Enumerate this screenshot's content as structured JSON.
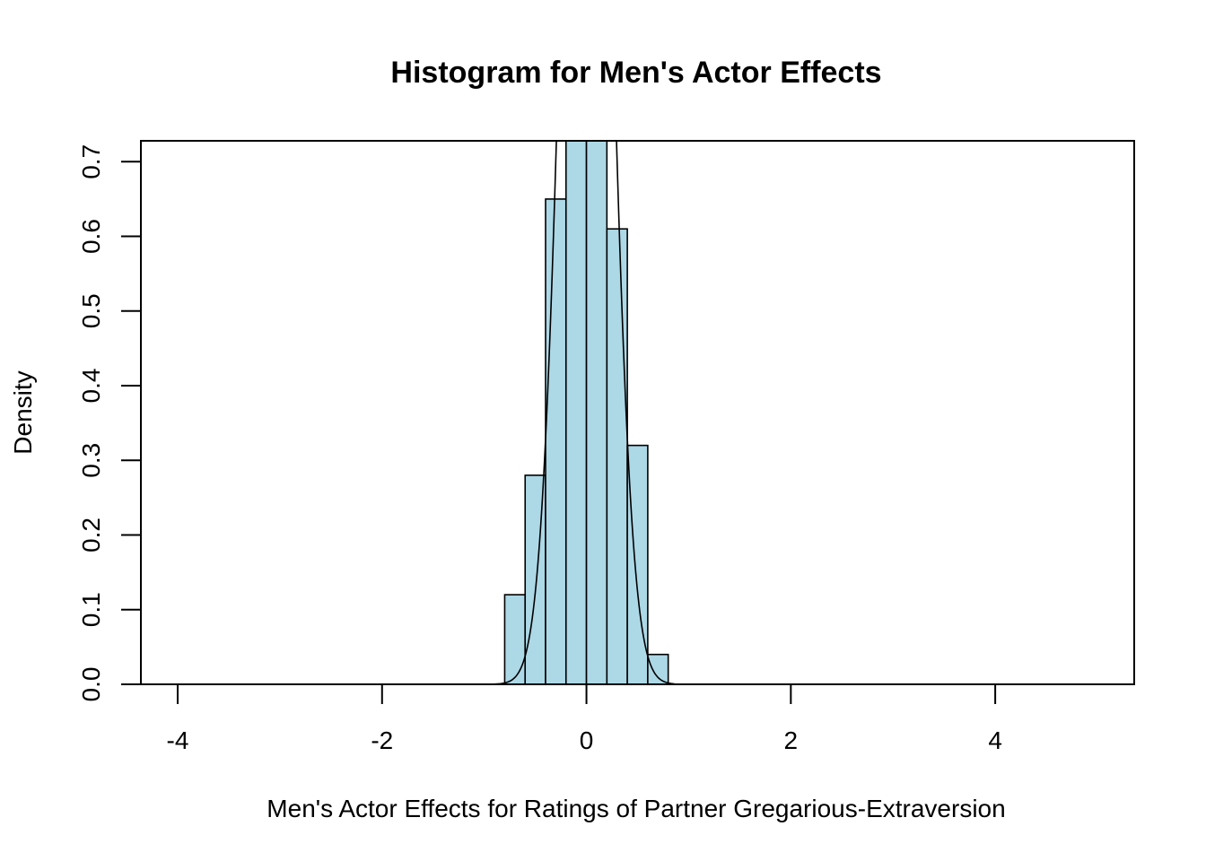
{
  "chart_data": {
    "type": "bar",
    "title": "Histogram for Men's Actor Effects",
    "xlabel": "Men's Actor Effects for Ratings of Partner Gregarious-Extraversion",
    "ylabel": "Density",
    "xlim": [
      -4.36,
      5.36
    ],
    "ylim": [
      0,
      0.728
    ],
    "x_ticks": [
      -4,
      -2,
      0,
      2,
      4
    ],
    "y_ticks": [
      0.0,
      0.1,
      0.2,
      0.3,
      0.4,
      0.5,
      0.6,
      0.7
    ],
    "x_tick_labels": [
      "-4",
      "-2",
      "0",
      "2",
      "4"
    ],
    "y_tick_labels": [
      "0.0",
      "0.1",
      "0.2",
      "0.3",
      "0.4",
      "0.5",
      "0.6",
      "0.7"
    ],
    "bins": [
      {
        "start": -0.8,
        "end": -0.6,
        "density": 0.12
      },
      {
        "start": -0.6,
        "end": -0.4,
        "density": 0.28
      },
      {
        "start": -0.4,
        "end": -0.2,
        "density": 0.65
      },
      {
        "start": -0.2,
        "end": 0.0,
        "density": 0.85
      },
      {
        "start": 0.0,
        "end": 0.2,
        "density": 0.9
      },
      {
        "start": 0.2,
        "end": 0.4,
        "density": 0.61
      },
      {
        "start": 0.4,
        "end": 0.6,
        "density": 0.32
      },
      {
        "start": 0.6,
        "end": 0.8,
        "density": 0.04
      }
    ],
    "density_curve": {
      "type": "normal",
      "mean": 0.0,
      "sd": 0.215,
      "from": -0.92,
      "to": 0.86
    },
    "bar_fill": "#add8e6",
    "bar_stroke": "#000000",
    "grid": false,
    "legend": "none"
  }
}
